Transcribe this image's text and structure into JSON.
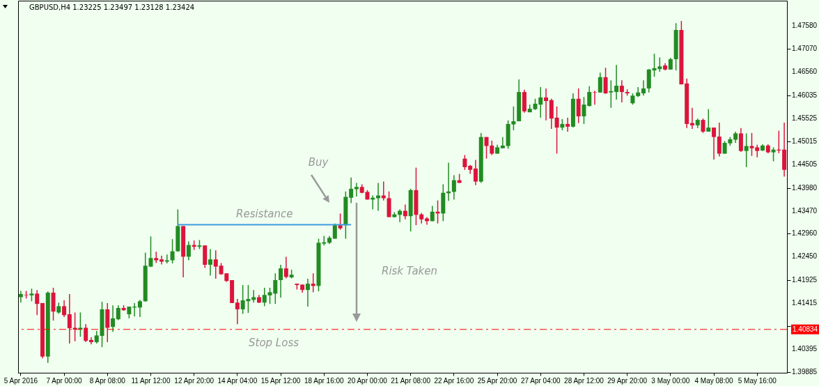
{
  "chart_data": {
    "type": "candlestick",
    "title": "GBPUSD,H4  1.23225 1.23497 1.23128 1.23424",
    "categories": [
      "5 Apr 2016",
      null,
      null,
      null,
      null,
      null,
      null,
      null,
      "7 Apr 00:00",
      null,
      null,
      null,
      null,
      null,
      null,
      null,
      "8 Apr 08:00",
      null,
      null,
      null,
      null,
      null,
      null,
      null,
      "11 Apr 12:00",
      null,
      null,
      null,
      null,
      null,
      null,
      null,
      "12 Apr 20:00",
      null,
      null,
      null,
      null,
      null,
      null,
      null,
      "14 Apr 04:00",
      null,
      null,
      null,
      null,
      null,
      null,
      null,
      "15 Apr 12:00",
      null,
      null,
      null,
      null,
      null,
      null,
      null,
      "18 Apr 16:00",
      null,
      null,
      null,
      null,
      null,
      null,
      null,
      "20 Apr 00:00",
      null,
      null,
      null,
      null,
      null,
      null,
      null,
      "21 Apr 08:00",
      null,
      null,
      null,
      null,
      null,
      null,
      null,
      "22 Apr 16:00",
      null,
      null,
      null,
      null,
      null,
      null,
      null,
      "25 Apr 20:00",
      null,
      null,
      null,
      null,
      null,
      null,
      null,
      "27 Apr 04:00",
      null,
      null,
      null,
      null,
      null,
      null,
      null,
      "28 Apr 12:00",
      null,
      null,
      null,
      null,
      null,
      null,
      null,
      "29 Apr 20:00",
      null,
      null,
      null,
      null,
      null,
      null,
      null,
      "3 May 00:00",
      null,
      null,
      null,
      null,
      null,
      null,
      null,
      "4 May 08:00",
      null,
      null,
      null,
      null,
      null,
      null,
      null,
      "5 May 16:00",
      null,
      null,
      null,
      null,
      null
    ],
    "ohlc": [
      [
        1.4155,
        1.4169,
        1.4143,
        1.4162
      ],
      [
        1.416,
        1.4169,
        1.4152,
        1.4159
      ],
      [
        1.4159,
        1.4174,
        1.4146,
        1.4163
      ],
      [
        1.4163,
        1.4171,
        1.4115,
        1.414
      ],
      [
        1.4142,
        1.4142,
        1.4019,
        1.4023
      ],
      [
        1.4023,
        1.4168,
        1.4009,
        1.4165
      ],
      [
        1.4165,
        1.4176,
        1.4103,
        1.4123
      ],
      [
        1.4121,
        1.4143,
        1.4118,
        1.4135
      ],
      [
        1.4135,
        1.4148,
        1.4111,
        1.4115
      ],
      [
        1.4117,
        1.4162,
        1.4052,
        1.4086
      ],
      [
        1.4087,
        1.4121,
        1.4057,
        1.4083
      ],
      [
        1.4083,
        1.4121,
        1.4067,
        1.4087
      ],
      [
        1.4087,
        1.4095,
        1.4055,
        1.4058
      ],
      [
        1.406,
        1.4066,
        1.405,
        1.4055
      ],
      [
        1.4055,
        1.408,
        1.4052,
        1.407
      ],
      [
        1.4069,
        1.4145,
        1.4044,
        1.4128
      ],
      [
        1.4128,
        1.4142,
        1.4055,
        1.4087
      ],
      [
        1.4089,
        1.4137,
        1.4078,
        1.4108
      ],
      [
        1.4106,
        1.4137,
        1.4104,
        1.4131
      ],
      [
        1.4131,
        1.4137,
        1.4125,
        1.4126
      ],
      [
        1.4117,
        1.4134,
        1.4108,
        1.4134
      ],
      [
        1.4132,
        1.4142,
        1.4112,
        1.4134
      ],
      [
        1.4132,
        1.4149,
        1.4111,
        1.4146
      ],
      [
        1.4146,
        1.4254,
        1.4145,
        1.4225
      ],
      [
        1.4223,
        1.429,
        1.4222,
        1.4242
      ],
      [
        1.4242,
        1.4256,
        1.4231,
        1.4237
      ],
      [
        1.4239,
        1.4247,
        1.4228,
        1.4234
      ],
      [
        1.4234,
        1.425,
        1.423,
        1.4237
      ],
      [
        1.4237,
        1.4284,
        1.423,
        1.4257
      ],
      [
        1.4257,
        1.435,
        1.4256,
        1.4313
      ],
      [
        1.4313,
        1.4313,
        1.4199,
        1.4245
      ],
      [
        1.4245,
        1.4279,
        1.4237,
        1.4271
      ],
      [
        1.4271,
        1.4281,
        1.426,
        1.4267
      ],
      [
        1.4267,
        1.4282,
        1.4262,
        1.427
      ],
      [
        1.427,
        1.427,
        1.422,
        1.4227
      ],
      [
        1.4227,
        1.4262,
        1.4203,
        1.4239
      ],
      [
        1.4239,
        1.4259,
        1.4196,
        1.4223
      ],
      [
        1.4225,
        1.4231,
        1.4205,
        1.4206
      ],
      [
        1.4208,
        1.4208,
        1.4189,
        1.4191
      ],
      [
        1.4193,
        1.4193,
        1.4142,
        1.4142
      ],
      [
        1.4143,
        1.4151,
        1.4095,
        1.4128
      ],
      [
        1.4128,
        1.4182,
        1.4118,
        1.4148
      ],
      [
        1.4146,
        1.4182,
        1.412,
        1.4151
      ],
      [
        1.4149,
        1.4171,
        1.4143,
        1.4155
      ],
      [
        1.4155,
        1.416,
        1.4142,
        1.4143
      ],
      [
        1.4143,
        1.4176,
        1.4135,
        1.416
      ],
      [
        1.4159,
        1.4176,
        1.414,
        1.4166
      ],
      [
        1.4163,
        1.4208,
        1.414,
        1.4193
      ],
      [
        1.4193,
        1.4227,
        1.4154,
        1.4219
      ],
      [
        1.4219,
        1.4245,
        1.4197,
        1.42
      ],
      [
        1.4199,
        1.4216,
        1.4197,
        1.4205
      ],
      [
        1.4185,
        1.4185,
        1.4172,
        1.4182
      ],
      [
        1.4183,
        1.4183,
        1.4165,
        1.4171
      ],
      [
        1.4171,
        1.4196,
        1.4134,
        1.4185
      ],
      [
        1.4185,
        1.4208,
        1.4166,
        1.418
      ],
      [
        1.418,
        1.4285,
        1.4168,
        1.4276
      ],
      [
        1.4274,
        1.4291,
        1.427,
        1.4277
      ],
      [
        1.4276,
        1.4291,
        1.4273,
        1.4287
      ],
      [
        1.4285,
        1.4319,
        1.4285,
        1.4315
      ],
      [
        1.4315,
        1.4341,
        1.4305,
        1.4308
      ],
      [
        1.4315,
        1.439,
        1.4285,
        1.4378
      ],
      [
        1.4376,
        1.4421,
        1.4364,
        1.4396
      ],
      [
        1.4395,
        1.4409,
        1.4379,
        1.44
      ],
      [
        1.44,
        1.4406,
        1.4386,
        1.4387
      ],
      [
        1.4389,
        1.4393,
        1.4372,
        1.4372
      ],
      [
        1.4372,
        1.4381,
        1.435,
        1.4376
      ],
      [
        1.4375,
        1.4409,
        1.4347,
        1.4381
      ],
      [
        1.4381,
        1.4412,
        1.437,
        1.4375
      ],
      [
        1.4375,
        1.439,
        1.4333,
        1.4333
      ],
      [
        1.4333,
        1.4344,
        1.4332,
        1.4339
      ],
      [
        1.4338,
        1.435,
        1.4322,
        1.4347
      ],
      [
        1.4347,
        1.4361,
        1.4328,
        1.4335
      ],
      [
        1.4335,
        1.4396,
        1.4301,
        1.4393
      ],
      [
        1.4393,
        1.4443,
        1.4315,
        1.4338
      ],
      [
        1.4339,
        1.4342,
        1.4319,
        1.4328
      ],
      [
        1.433,
        1.4333,
        1.4316,
        1.4324
      ],
      [
        1.4324,
        1.4358,
        1.4324,
        1.4345
      ],
      [
        1.4345,
        1.437,
        1.4319,
        1.4341
      ],
      [
        1.4341,
        1.4406,
        1.4324,
        1.4387
      ],
      [
        1.4386,
        1.4454,
        1.4369,
        1.439
      ],
      [
        1.4389,
        1.4426,
        1.4372,
        1.4415
      ],
      [
        1.4415,
        1.4429,
        1.4409,
        1.4409
      ],
      [
        1.4463,
        1.4471,
        1.4438,
        1.4444
      ],
      [
        1.4447,
        1.4449,
        1.4429,
        1.4438
      ],
      [
        1.4441,
        1.446,
        1.4404,
        1.4412
      ],
      [
        1.4412,
        1.452,
        1.4409,
        1.4511
      ],
      [
        1.4511,
        1.4511,
        1.4463,
        1.4491
      ],
      [
        1.4492,
        1.4503,
        1.4471,
        1.4474
      ],
      [
        1.4474,
        1.4494,
        1.4474,
        1.4488
      ],
      [
        1.4486,
        1.4511,
        1.4486,
        1.4492
      ],
      [
        1.4491,
        1.4548,
        1.4485,
        1.454
      ],
      [
        1.4539,
        1.4579,
        1.4526,
        1.4546
      ],
      [
        1.4546,
        1.4639,
        1.4546,
        1.4611
      ],
      [
        1.4611,
        1.4616,
        1.4565,
        1.4568
      ],
      [
        1.4566,
        1.4583,
        1.4566,
        1.4574
      ],
      [
        1.4573,
        1.4596,
        1.4571,
        1.4585
      ],
      [
        1.4583,
        1.4622,
        1.4554,
        1.4599
      ],
      [
        1.4599,
        1.4619,
        1.4548,
        1.4591
      ],
      [
        1.4593,
        1.4596,
        1.4529,
        1.4552
      ],
      [
        1.4554,
        1.4579,
        1.4474,
        1.4532
      ],
      [
        1.4532,
        1.4551,
        1.4526,
        1.454
      ],
      [
        1.454,
        1.4554,
        1.4523,
        1.4534
      ],
      [
        1.4534,
        1.4608,
        1.4532,
        1.4596
      ],
      [
        1.4596,
        1.4619,
        1.4542,
        1.4557
      ],
      [
        1.4557,
        1.46,
        1.454,
        1.4583
      ],
      [
        1.458,
        1.4624,
        1.4579,
        1.4611
      ],
      [
        1.4611,
        1.4614,
        1.4583,
        1.461
      ],
      [
        1.461,
        1.4654,
        1.461,
        1.4644
      ],
      [
        1.4644,
        1.4665,
        1.4607,
        1.4608
      ],
      [
        1.461,
        1.4637,
        1.4576,
        1.4613
      ],
      [
        1.4611,
        1.4671,
        1.4594,
        1.4625
      ],
      [
        1.4625,
        1.4637,
        1.4588,
        1.4611
      ],
      [
        1.4611,
        1.4617,
        1.4603,
        1.4608
      ],
      [
        1.4586,
        1.4608,
        1.4583,
        1.4603
      ],
      [
        1.4602,
        1.4622,
        1.46,
        1.461
      ],
      [
        1.4608,
        1.4637,
        1.4603,
        1.4619
      ],
      [
        1.4619,
        1.4662,
        1.461,
        1.4661
      ],
      [
        1.4659,
        1.4696,
        1.4645,
        1.4664
      ],
      [
        1.4662,
        1.4688,
        1.4656,
        1.4668
      ],
      [
        1.467,
        1.4675,
        1.4659,
        1.4661
      ],
      [
        1.4661,
        1.4687,
        1.4661,
        1.4684
      ],
      [
        1.4684,
        1.4764,
        1.4659,
        1.4749
      ],
      [
        1.4749,
        1.4769,
        1.4628,
        1.4628
      ],
      [
        1.463,
        1.4641,
        1.4531,
        1.454
      ],
      [
        1.4542,
        1.4576,
        1.4529,
        1.4537
      ],
      [
        1.4537,
        1.4552,
        1.4531,
        1.4549
      ],
      [
        1.4549,
        1.4552,
        1.452,
        1.4523
      ],
      [
        1.4523,
        1.4573,
        1.4523,
        1.4532
      ],
      [
        1.4532,
        1.4532,
        1.4461,
        1.4511
      ],
      [
        1.4512,
        1.4543,
        1.4468,
        1.4474
      ],
      [
        1.4474,
        1.4502,
        1.4474,
        1.4498
      ],
      [
        1.4497,
        1.4511,
        1.4492,
        1.4506
      ],
      [
        1.4505,
        1.4523,
        1.4498,
        1.4519
      ],
      [
        1.4519,
        1.4531,
        1.4478,
        1.448
      ],
      [
        1.448,
        1.4519,
        1.4444,
        1.4491
      ],
      [
        1.4491,
        1.452,
        1.4469,
        1.4486
      ],
      [
        1.4488,
        1.4494,
        1.4466,
        1.448
      ],
      [
        1.4481,
        1.4495,
        1.448,
        1.4492
      ],
      [
        1.4492,
        1.4495,
        1.4475,
        1.4477
      ],
      [
        1.4477,
        1.4488,
        1.4457,
        1.4483
      ],
      [
        1.4483,
        1.4525,
        1.4475,
        1.4481
      ],
      [
        1.4483,
        1.4543,
        1.4423,
        1.4438
      ]
    ],
    "colors": [
      "#228b22",
      "#dc143c",
      "#228b22",
      "#dc143c",
      "#dc143c",
      "#228b22",
      "#dc143c",
      "#228b22",
      "#dc143c",
      "#dc143c",
      "#dc143c",
      "#228b22",
      "#dc143c",
      "#dc143c",
      "#228b22",
      "#228b22",
      "#dc143c",
      "#228b22",
      "#228b22",
      "#dc143c",
      "#228b22",
      "#228b22",
      "#228b22",
      "#228b22",
      "#228b22",
      "#dc143c",
      "#dc143c",
      "#228b22",
      "#228b22",
      "#228b22",
      "#dc143c",
      "#228b22",
      "#dc143c",
      "#228b22",
      "#dc143c",
      "#228b22",
      "#dc143c",
      "#dc143c",
      "#dc143c",
      "#dc143c",
      "#dc143c",
      "#228b22",
      "#228b22",
      "#228b22",
      "#dc143c",
      "#228b22",
      "#228b22",
      "#228b22",
      "#228b22",
      "#dc143c",
      "#228b22",
      "#dc143c",
      "#dc143c",
      "#228b22",
      "#dc143c",
      "#228b22",
      "#228b22",
      "#228b22",
      "#228b22",
      "#dc143c",
      "#228b22",
      "#228b22",
      "#228b22",
      "#dc143c",
      "#dc143c",
      "#228b22",
      "#228b22",
      "#dc143c",
      "#dc143c",
      "#228b22",
      "#228b22",
      "#dc143c",
      "#228b22",
      "#dc143c",
      "#dc143c",
      "#dc143c",
      "#228b22",
      "#dc143c",
      "#228b22",
      "#228b22",
      "#228b22",
      "#dc143c",
      "#dc143c",
      "#dc143c",
      "#dc143c",
      "#228b22",
      "#dc143c",
      "#dc143c",
      "#228b22",
      "#228b22",
      "#228b22",
      "#228b22",
      "#228b22",
      "#dc143c",
      "#228b22",
      "#228b22",
      "#228b22",
      "#dc143c",
      "#dc143c",
      "#dc143c",
      "#228b22",
      "#dc143c",
      "#228b22",
      "#dc143c",
      "#228b22",
      "#228b22",
      "#dc143c",
      "#228b22",
      "#dc143c",
      "#228b22",
      "#228b22",
      "#dc143c",
      "#dc143c",
      "#228b22",
      "#228b22",
      "#228b22",
      "#228b22",
      "#228b22",
      "#228b22",
      "#dc143c",
      "#228b22",
      "#228b22",
      "#dc143c",
      "#dc143c",
      "#dc143c",
      "#228b22",
      "#dc143c",
      "#228b22",
      "#dc143c",
      "#dc143c",
      "#228b22",
      "#228b22",
      "#228b22",
      "#dc143c",
      "#228b22",
      "#dc143c",
      "#dc143c",
      "#228b22",
      "#dc143c",
      "#228b22",
      "#dc143c",
      "#dc143c"
    ],
    "series": [
      {
        "type": "line",
        "name": "Resistance",
        "color": "#3d9be0",
        "values": [
          null,
          null,
          null,
          null,
          null,
          null,
          null,
          null,
          null,
          null,
          null,
          null,
          null,
          null,
          null,
          null,
          null,
          null,
          null,
          null,
          null,
          null,
          null,
          null,
          null,
          null,
          null,
          null,
          null,
          1.4316,
          1.4316,
          1.4316,
          1.4316,
          1.4316,
          1.4316,
          1.4316,
          1.4316,
          1.4316,
          1.4316,
          1.4316,
          1.4316,
          1.4316,
          1.4316,
          1.4316,
          1.4316,
          1.4316,
          1.4316,
          1.4316,
          1.4316,
          1.4316,
          1.4316,
          1.4316,
          1.4316,
          1.4316,
          1.4316,
          1.4316,
          1.4316,
          1.4316,
          1.4316,
          1.4316,
          1.4316,
          1.4316,
          null,
          null,
          null,
          null,
          null,
          null,
          null,
          null,
          null,
          null,
          null,
          null,
          null,
          null,
          null,
          null,
          null,
          null,
          null,
          null,
          null,
          null,
          null,
          null,
          null,
          null,
          null,
          null,
          null,
          null,
          null,
          null,
          null,
          null,
          null,
          null,
          null,
          null,
          null,
          null,
          null,
          null,
          null,
          null,
          null,
          null,
          null,
          null,
          null,
          null,
          null,
          null,
          null,
          null,
          null,
          null,
          null,
          null,
          null,
          null,
          null,
          null,
          null,
          null,
          null,
          null,
          null,
          null,
          null,
          null,
          null,
          null,
          null,
          null,
          null,
          null,
          null,
          null,
          null,
          null
        ]
      }
    ],
    "ref_lines": [
      {
        "axis": "y",
        "value": 1.40834,
        "label": "Stop Loss",
        "color": "#ff0000",
        "line_style": "dashed"
      }
    ],
    "annotations": [
      "Buy",
      "Risk Taken",
      "1.40834"
    ],
    "ylim": [
      1.3987,
      1.4814
    ],
    "yticks": [
      {
        "value": 1.39885,
        "label": "1.39885"
      },
      {
        "value": 1.40395,
        "label": "1.40395"
      },
      {
        "value": 1.40905,
        "label": null
      },
      {
        "value": 1.41415,
        "label": "1.41415"
      },
      {
        "value": 1.41925,
        "label": "1.41925"
      },
      {
        "value": 1.4245,
        "label": "1.42450"
      },
      {
        "value": 1.4296,
        "label": "1.42960"
      },
      {
        "value": 1.4347,
        "label": "1.43470"
      },
      {
        "value": 1.4398,
        "label": "1.43980"
      },
      {
        "value": 1.44505,
        "label": "1.44505"
      },
      {
        "value": 1.45015,
        "label": "1.45015"
      },
      {
        "value": 1.45525,
        "label": "1.45525"
      },
      {
        "value": 1.46035,
        "label": "1.46035"
      },
      {
        "value": 1.4656,
        "label": "1.46560"
      },
      {
        "value": 1.4707,
        "label": "1.47070"
      },
      {
        "value": 1.4758,
        "label": "1.47580"
      }
    ]
  }
}
